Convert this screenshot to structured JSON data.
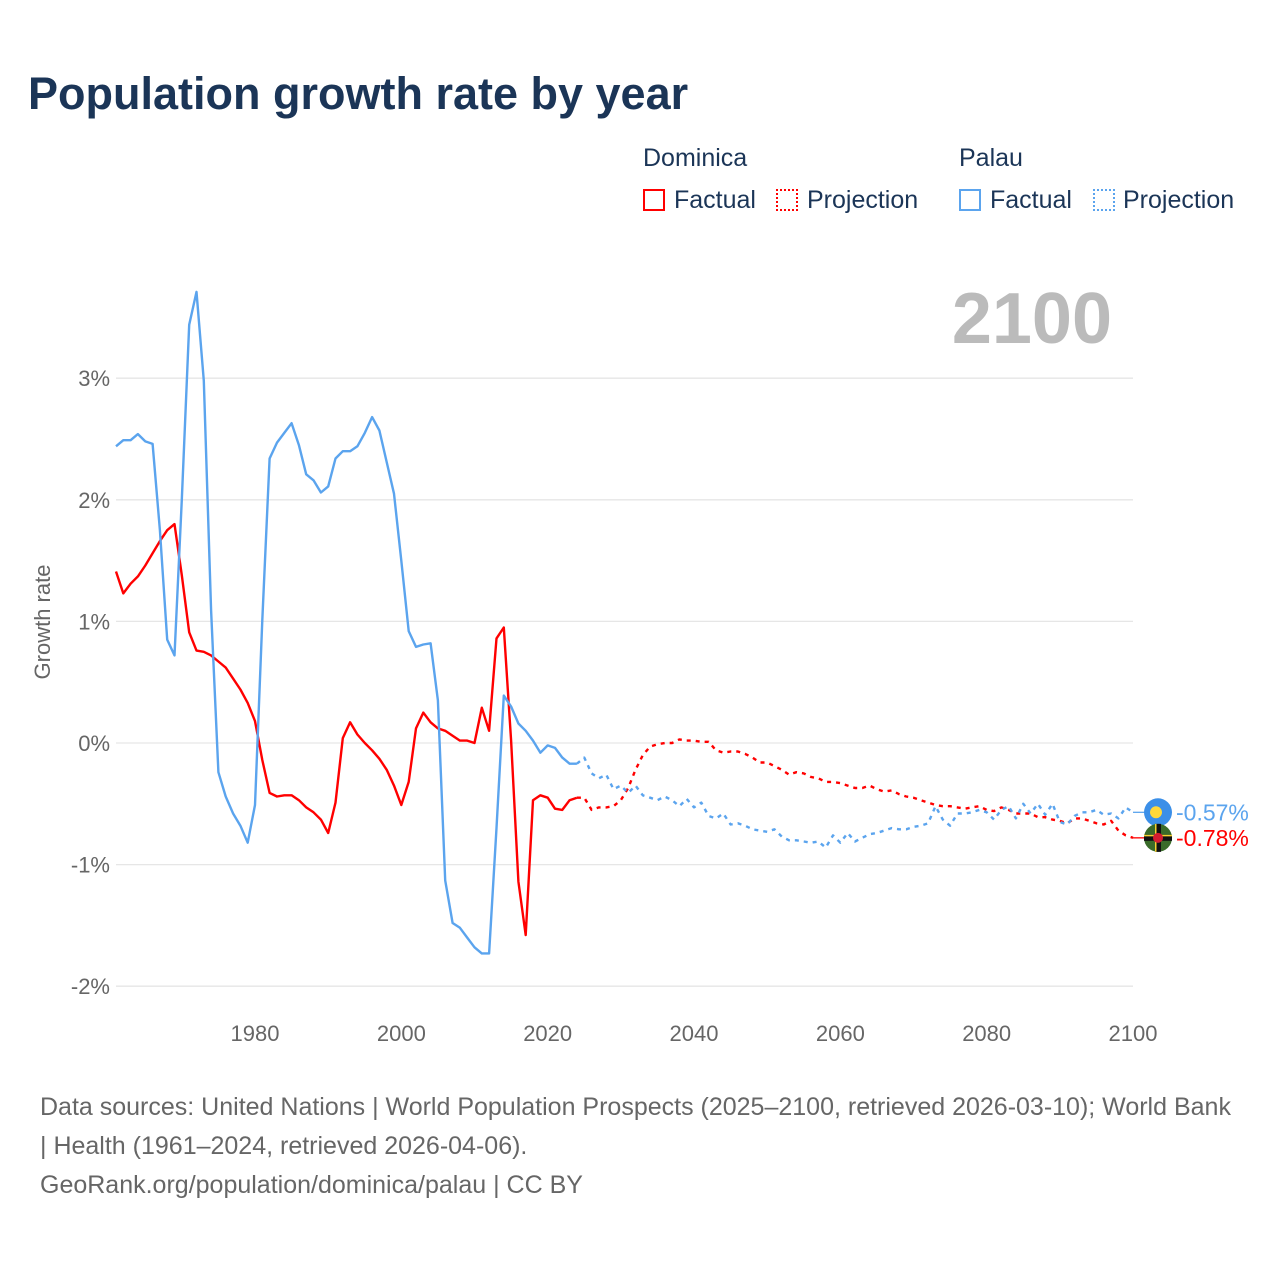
{
  "title": "Population growth rate by year",
  "legend": {
    "groups": [
      {
        "name": "Dominica",
        "factual": "Factual",
        "projection": "Projection",
        "color": "#ff0000"
      },
      {
        "name": "Palau",
        "factual": "Factual",
        "projection": "Projection",
        "color": "#5ba4ee"
      }
    ]
  },
  "year_label": "2100",
  "source": {
    "line1": "Data sources: United Nations | World Population Prospects (2025–2100, retrieved 2026-03-10); World Bank | Health (1961–2024, retrieved 2026-04-06).",
    "line2": "GeoRank.org/population/dominica/palau | CC BY"
  },
  "chart_data": {
    "type": "line",
    "title": "Population growth rate by year",
    "xlabel": "",
    "ylabel": "Growth rate",
    "xlim": [
      1961,
      2100
    ],
    "ylim": [
      -2.3,
      3.8
    ],
    "xticks": [
      1980,
      2000,
      2020,
      2040,
      2060,
      2080,
      2100
    ],
    "xtick_labels": [
      "1980",
      "2000",
      "2020",
      "2040",
      "2060",
      "2080",
      "2100"
    ],
    "yticks": [
      3,
      2,
      1,
      0,
      -1,
      -2
    ],
    "ytick_labels": [
      "3%",
      "2%",
      "1%",
      "0%",
      "-1%",
      "-2%"
    ],
    "grid": true,
    "end_labels": {
      "Palau": "-0.57%",
      "Dominica": "-0.78%"
    },
    "series": [
      {
        "name": "Dominica Factual",
        "country": "Dominica",
        "kind": "factual",
        "color": "#ff0000",
        "x_start": 1961,
        "values": [
          1.41,
          1.23,
          1.31,
          1.37,
          1.46,
          1.56,
          1.66,
          1.75,
          1.8,
          1.38,
          0.91,
          0.76,
          0.75,
          0.72,
          0.67,
          0.62,
          0.53,
          0.44,
          0.33,
          0.18,
          -0.14,
          -0.41,
          -0.44,
          -0.43,
          -0.43,
          -0.47,
          -0.53,
          -0.57,
          -0.63,
          -0.74,
          -0.49,
          0.04,
          0.17,
          0.07,
          0.0,
          -0.06,
          -0.13,
          -0.22,
          -0.35,
          -0.51,
          -0.32,
          0.12,
          0.25,
          0.17,
          0.12,
          0.1,
          0.06,
          0.02,
          0.02,
          0.0,
          0.29,
          0.1,
          0.86,
          0.95,
          0.02,
          -1.14,
          -1.58,
          -0.47,
          -0.43,
          -0.45,
          -0.54,
          -0.55,
          -0.47,
          -0.45
        ]
      },
      {
        "name": "Dominica Projection",
        "country": "Dominica",
        "kind": "projection",
        "color": "#ff0000",
        "x_start": 2024,
        "values": [
          -0.45,
          -0.45,
          -0.55,
          -0.53,
          -0.53,
          -0.52,
          -0.47,
          -0.37,
          -0.22,
          -0.1,
          -0.03,
          -0.01,
          0.0,
          0.0,
          0.03,
          0.02,
          0.02,
          0.01,
          0.01,
          -0.06,
          -0.08,
          -0.07,
          -0.07,
          -0.09,
          -0.12,
          -0.16,
          -0.16,
          -0.19,
          -0.22,
          -0.26,
          -0.24,
          -0.25,
          -0.28,
          -0.29,
          -0.32,
          -0.32,
          -0.33,
          -0.35,
          -0.37,
          -0.37,
          -0.35,
          -0.38,
          -0.4,
          -0.39,
          -0.42,
          -0.44,
          -0.45,
          -0.47,
          -0.49,
          -0.51,
          -0.52,
          -0.52,
          -0.53,
          -0.54,
          -0.53,
          -0.52,
          -0.55,
          -0.56,
          -0.53,
          -0.55,
          -0.58,
          -0.58,
          -0.58,
          -0.61,
          -0.61,
          -0.63,
          -0.64,
          -0.66,
          -0.62,
          -0.62,
          -0.64,
          -0.66,
          -0.67,
          -0.64,
          -0.72,
          -0.76,
          -0.78
        ]
      },
      {
        "name": "Palau Factual",
        "country": "Palau",
        "kind": "factual",
        "color": "#5ba4ee",
        "x_start": 1961,
        "values": [
          2.44,
          2.49,
          2.49,
          2.54,
          2.48,
          2.46,
          1.75,
          0.85,
          0.72,
          2.0,
          3.44,
          3.71,
          2.98,
          1.09,
          -0.24,
          -0.44,
          -0.58,
          -0.68,
          -0.82,
          -0.51,
          1.01,
          2.34,
          2.47,
          2.55,
          2.63,
          2.45,
          2.21,
          2.16,
          2.06,
          2.11,
          2.34,
          2.4,
          2.4,
          2.44,
          2.55,
          2.68,
          2.57,
          2.31,
          2.05,
          1.5,
          0.92,
          0.79,
          0.81,
          0.82,
          0.35,
          -1.13,
          -1.48,
          -1.52,
          -1.6,
          -1.68,
          -1.73,
          -1.73,
          -0.7,
          0.39,
          0.3,
          0.16,
          0.1,
          0.02,
          -0.08,
          -0.02,
          -0.04,
          -0.12,
          -0.17,
          -0.17
        ]
      },
      {
        "name": "Palau Projection",
        "country": "Palau",
        "kind": "projection",
        "color": "#5ba4ee",
        "x_start": 2024,
        "values": [
          -0.17,
          -0.12,
          -0.25,
          -0.29,
          -0.26,
          -0.38,
          -0.35,
          -0.41,
          -0.35,
          -0.43,
          -0.45,
          -0.47,
          -0.44,
          -0.47,
          -0.52,
          -0.46,
          -0.53,
          -0.49,
          -0.6,
          -0.62,
          -0.58,
          -0.67,
          -0.66,
          -0.68,
          -0.71,
          -0.72,
          -0.73,
          -0.71,
          -0.77,
          -0.8,
          -0.8,
          -0.81,
          -0.82,
          -0.81,
          -0.86,
          -0.76,
          -0.82,
          -0.74,
          -0.81,
          -0.78,
          -0.75,
          -0.74,
          -0.72,
          -0.7,
          -0.71,
          -0.71,
          -0.69,
          -0.68,
          -0.66,
          -0.52,
          -0.63,
          -0.68,
          -0.58,
          -0.58,
          -0.57,
          -0.55,
          -0.57,
          -0.63,
          -0.55,
          -0.52,
          -0.62,
          -0.5,
          -0.58,
          -0.5,
          -0.59,
          -0.5,
          -0.65,
          -0.67,
          -0.6,
          -0.57,
          -0.57,
          -0.55,
          -0.59,
          -0.58,
          -0.62,
          -0.53,
          -0.57
        ]
      }
    ]
  }
}
